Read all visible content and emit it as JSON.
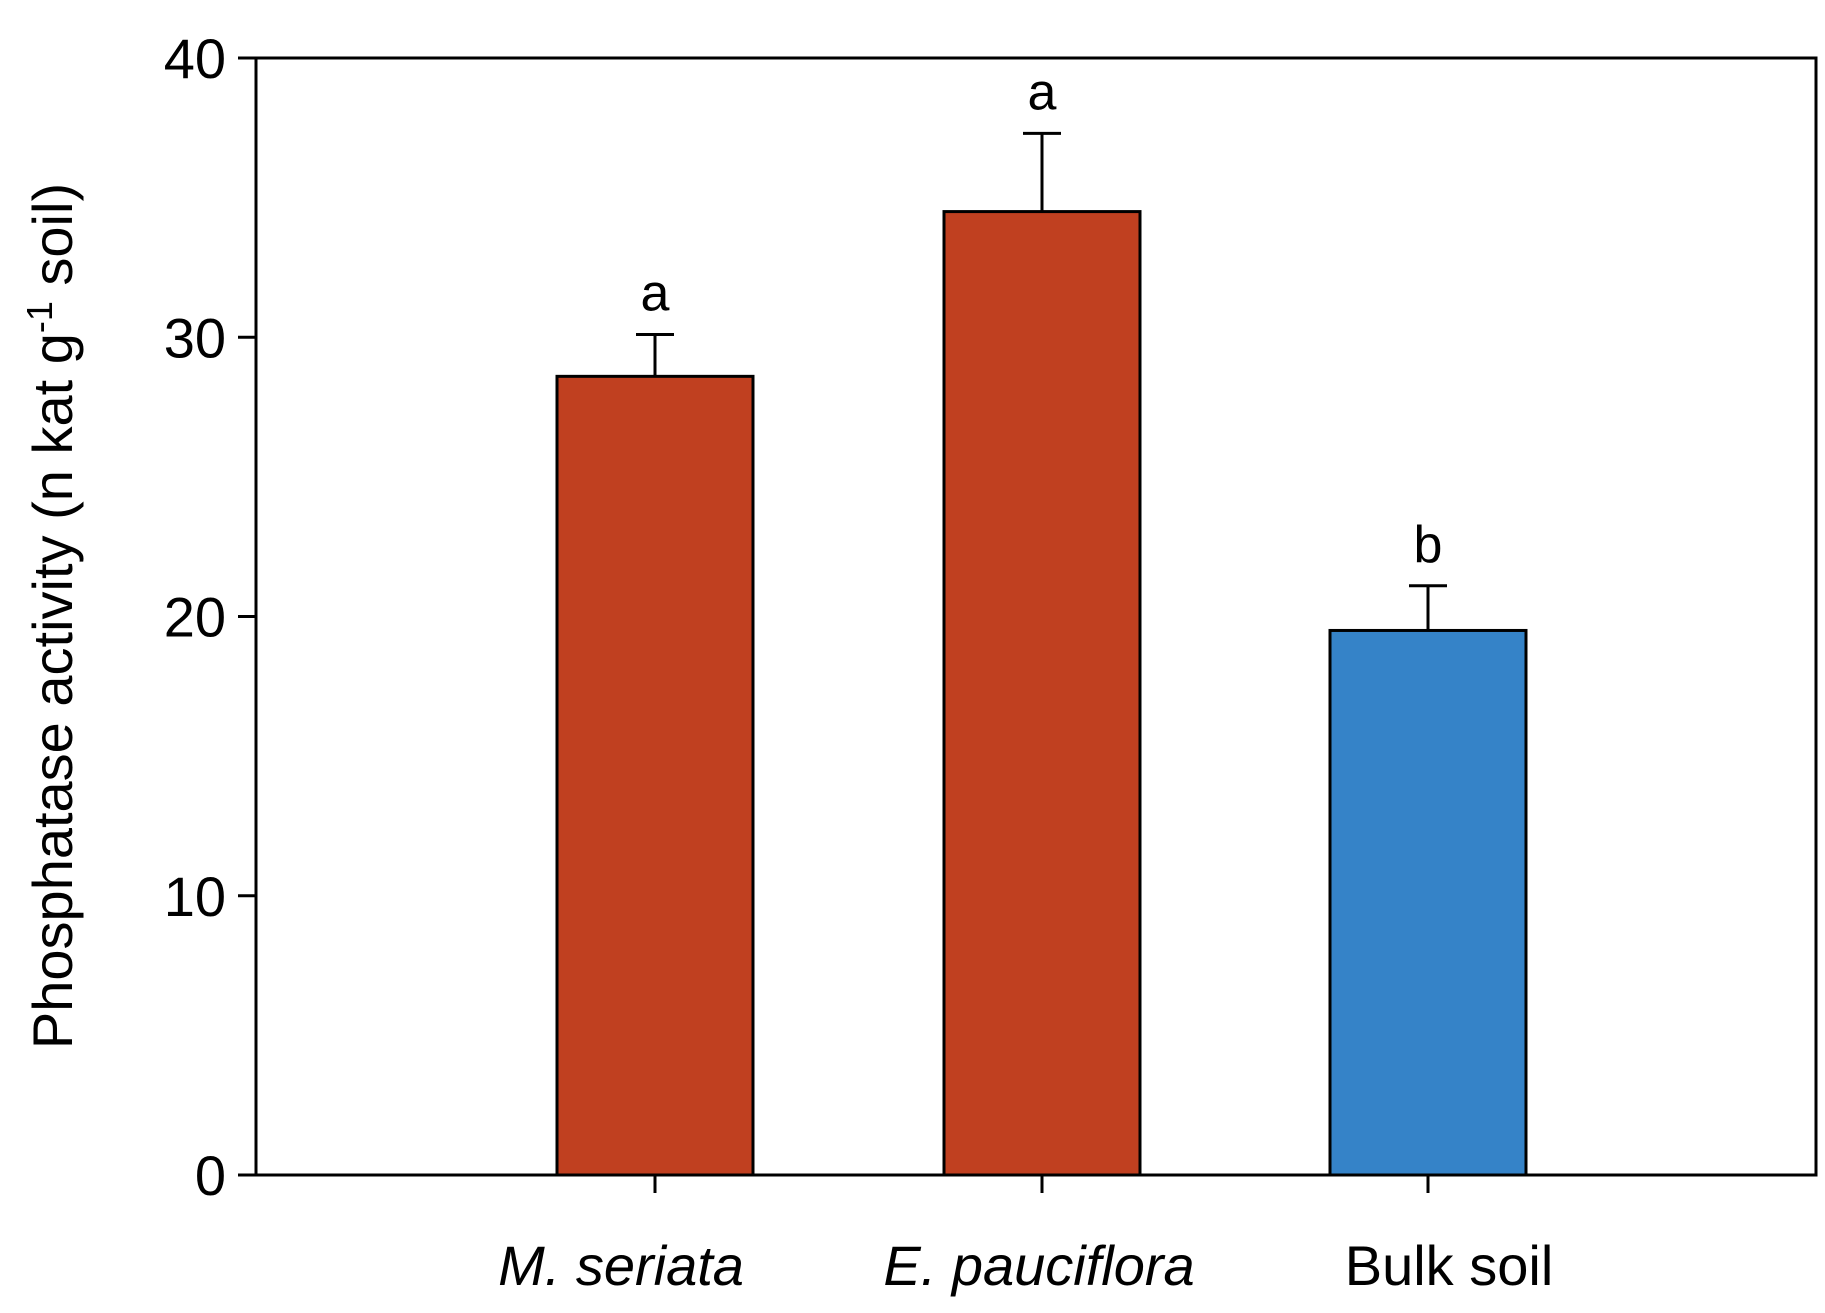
{
  "chart_data": {
    "type": "bar",
    "title": "",
    "xlabel": "",
    "ylabel": {
      "parts": [
        {
          "text": "Phosphatase activity (n kat g",
          "sup": false
        },
        {
          "text": "-1",
          "sup": true
        },
        {
          "text": " soil)",
          "sup": false
        }
      ]
    },
    "categories": [
      "M. seriata",
      "E. pauciflora",
      "Bulk soil"
    ],
    "category_italic": [
      true,
      true,
      false
    ],
    "values": [
      28.6,
      34.5,
      19.5
    ],
    "errors": [
      1.5,
      2.8,
      1.6
    ],
    "significance": [
      "a",
      "a",
      "b"
    ],
    "colors": [
      "#c04020",
      "#c04020",
      "#3583c8"
    ],
    "ylim": [
      0,
      40
    ],
    "yticks": [
      0,
      10,
      20,
      30,
      40
    ],
    "grid": false,
    "legend": "none"
  }
}
